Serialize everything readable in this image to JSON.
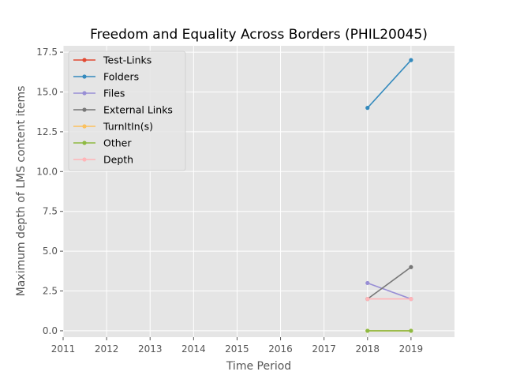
{
  "chart_data": {
    "type": "line",
    "title": "Freedom and Equality Across Borders (PHIL20045)",
    "xlabel": "Time Period",
    "ylabel": "Maximum depth of LMS content items",
    "xlim": [
      2011,
      2020
    ],
    "ylim": [
      -0.4,
      17.9
    ],
    "x_ticks": [
      2011,
      2012,
      2013,
      2014,
      2015,
      2016,
      2017,
      2018,
      2019
    ],
    "x_tick_labels": [
      "2011",
      "2012",
      "2013",
      "2014",
      "2015",
      "2016",
      "2017",
      "2018",
      "2019"
    ],
    "y_ticks": [
      0,
      2.5,
      5,
      7.5,
      10,
      12.5,
      15,
      17.5
    ],
    "y_tick_labels": [
      "0.0",
      "2.5",
      "5.0",
      "7.5",
      "10.0",
      "12.5",
      "15.0",
      "17.5"
    ],
    "grid": true,
    "legend_position": "top-left",
    "series": [
      {
        "name": "Test-Links",
        "color": "#E24A33",
        "x": [],
        "y": []
      },
      {
        "name": "Folders",
        "color": "#348ABD",
        "x": [
          2018,
          2019
        ],
        "y": [
          14,
          17
        ]
      },
      {
        "name": "Files",
        "color": "#988ED5",
        "x": [
          2018,
          2019
        ],
        "y": [
          3,
          2
        ]
      },
      {
        "name": "External Links",
        "color": "#777777",
        "x": [
          2018,
          2019
        ],
        "y": [
          2,
          4
        ]
      },
      {
        "name": "TurnItIn(s)",
        "color": "#FBC15E",
        "x": [
          2018,
          2019
        ],
        "y": [
          0,
          0
        ]
      },
      {
        "name": "Other",
        "color": "#8EBA42",
        "x": [
          2018,
          2019
        ],
        "y": [
          0,
          0
        ]
      },
      {
        "name": "Depth",
        "color": "#FFB5B8",
        "x": [
          2018,
          2019
        ],
        "y": [
          2,
          2
        ]
      }
    ]
  }
}
